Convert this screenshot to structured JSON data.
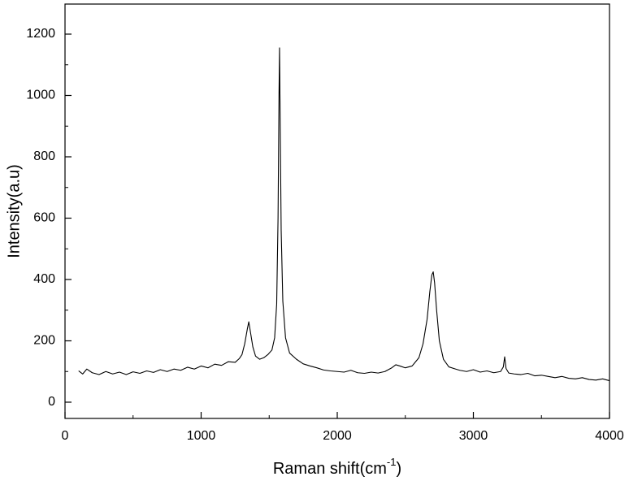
{
  "chart_data": {
    "type": "line",
    "xlabel": {
      "text": "Raman shift(cm",
      "superscript": "-1",
      "suffix": ")"
    },
    "ylabel": "Intensity(a.u)",
    "xlim": [
      0,
      4000
    ],
    "ylim": [
      -53,
      1298
    ],
    "xticks": [
      0,
      1000,
      2000,
      3000,
      4000
    ],
    "yticks": [
      0,
      200,
      400,
      600,
      800,
      1000,
      1200
    ],
    "x_minor_ticks": [
      500,
      1500,
      2500,
      3500
    ],
    "y_minor_ticks": [
      100,
      300,
      500,
      700,
      900,
      1100
    ],
    "grid": false,
    "series": [
      {
        "color": "#000000",
        "x": [
          100,
          130,
          160,
          200,
          250,
          300,
          350,
          400,
          450,
          500,
          550,
          600,
          650,
          700,
          750,
          800,
          850,
          900,
          950,
          1000,
          1050,
          1100,
          1150,
          1200,
          1250,
          1280,
          1300,
          1320,
          1340,
          1350,
          1360,
          1380,
          1400,
          1430,
          1460,
          1490,
          1520,
          1540,
          1555,
          1565,
          1572,
          1576,
          1580,
          1588,
          1600,
          1620,
          1650,
          1700,
          1750,
          1800,
          1850,
          1900,
          1950,
          2000,
          2050,
          2100,
          2150,
          2200,
          2250,
          2300,
          2350,
          2400,
          2430,
          2460,
          2500,
          2550,
          2600,
          2630,
          2660,
          2680,
          2695,
          2705,
          2715,
          2730,
          2750,
          2780,
          2820,
          2870,
          2900,
          2950,
          3000,
          3050,
          3100,
          3150,
          3200,
          3220,
          3230,
          3240,
          3260,
          3300,
          3350,
          3400,
          3450,
          3500,
          3550,
          3600,
          3650,
          3700,
          3750,
          3800,
          3850,
          3900,
          3950,
          4000
        ],
        "values": [
          102,
          92,
          108,
          96,
          90,
          100,
          92,
          98,
          90,
          99,
          94,
          102,
          97,
          106,
          100,
          108,
          104,
          114,
          108,
          118,
          112,
          124,
          120,
          132,
          130,
          142,
          155,
          190,
          240,
          262,
          235,
          180,
          150,
          140,
          145,
          155,
          170,
          210,
          320,
          600,
          1000,
          1155,
          950,
          560,
          330,
          210,
          160,
          140,
          125,
          118,
          112,
          105,
          102,
          100,
          98,
          104,
          96,
          94,
          98,
          95,
          100,
          112,
          122,
          118,
          112,
          118,
          145,
          190,
          270,
          360,
          415,
          425,
          390,
          300,
          200,
          140,
          115,
          108,
          104,
          100,
          106,
          98,
          102,
          96,
          100,
          115,
          148,
          110,
          95,
          92,
          90,
          94,
          86,
          88,
          84,
          80,
          84,
          78,
          76,
          80,
          74,
          72,
          76,
          70
        ]
      }
    ]
  }
}
